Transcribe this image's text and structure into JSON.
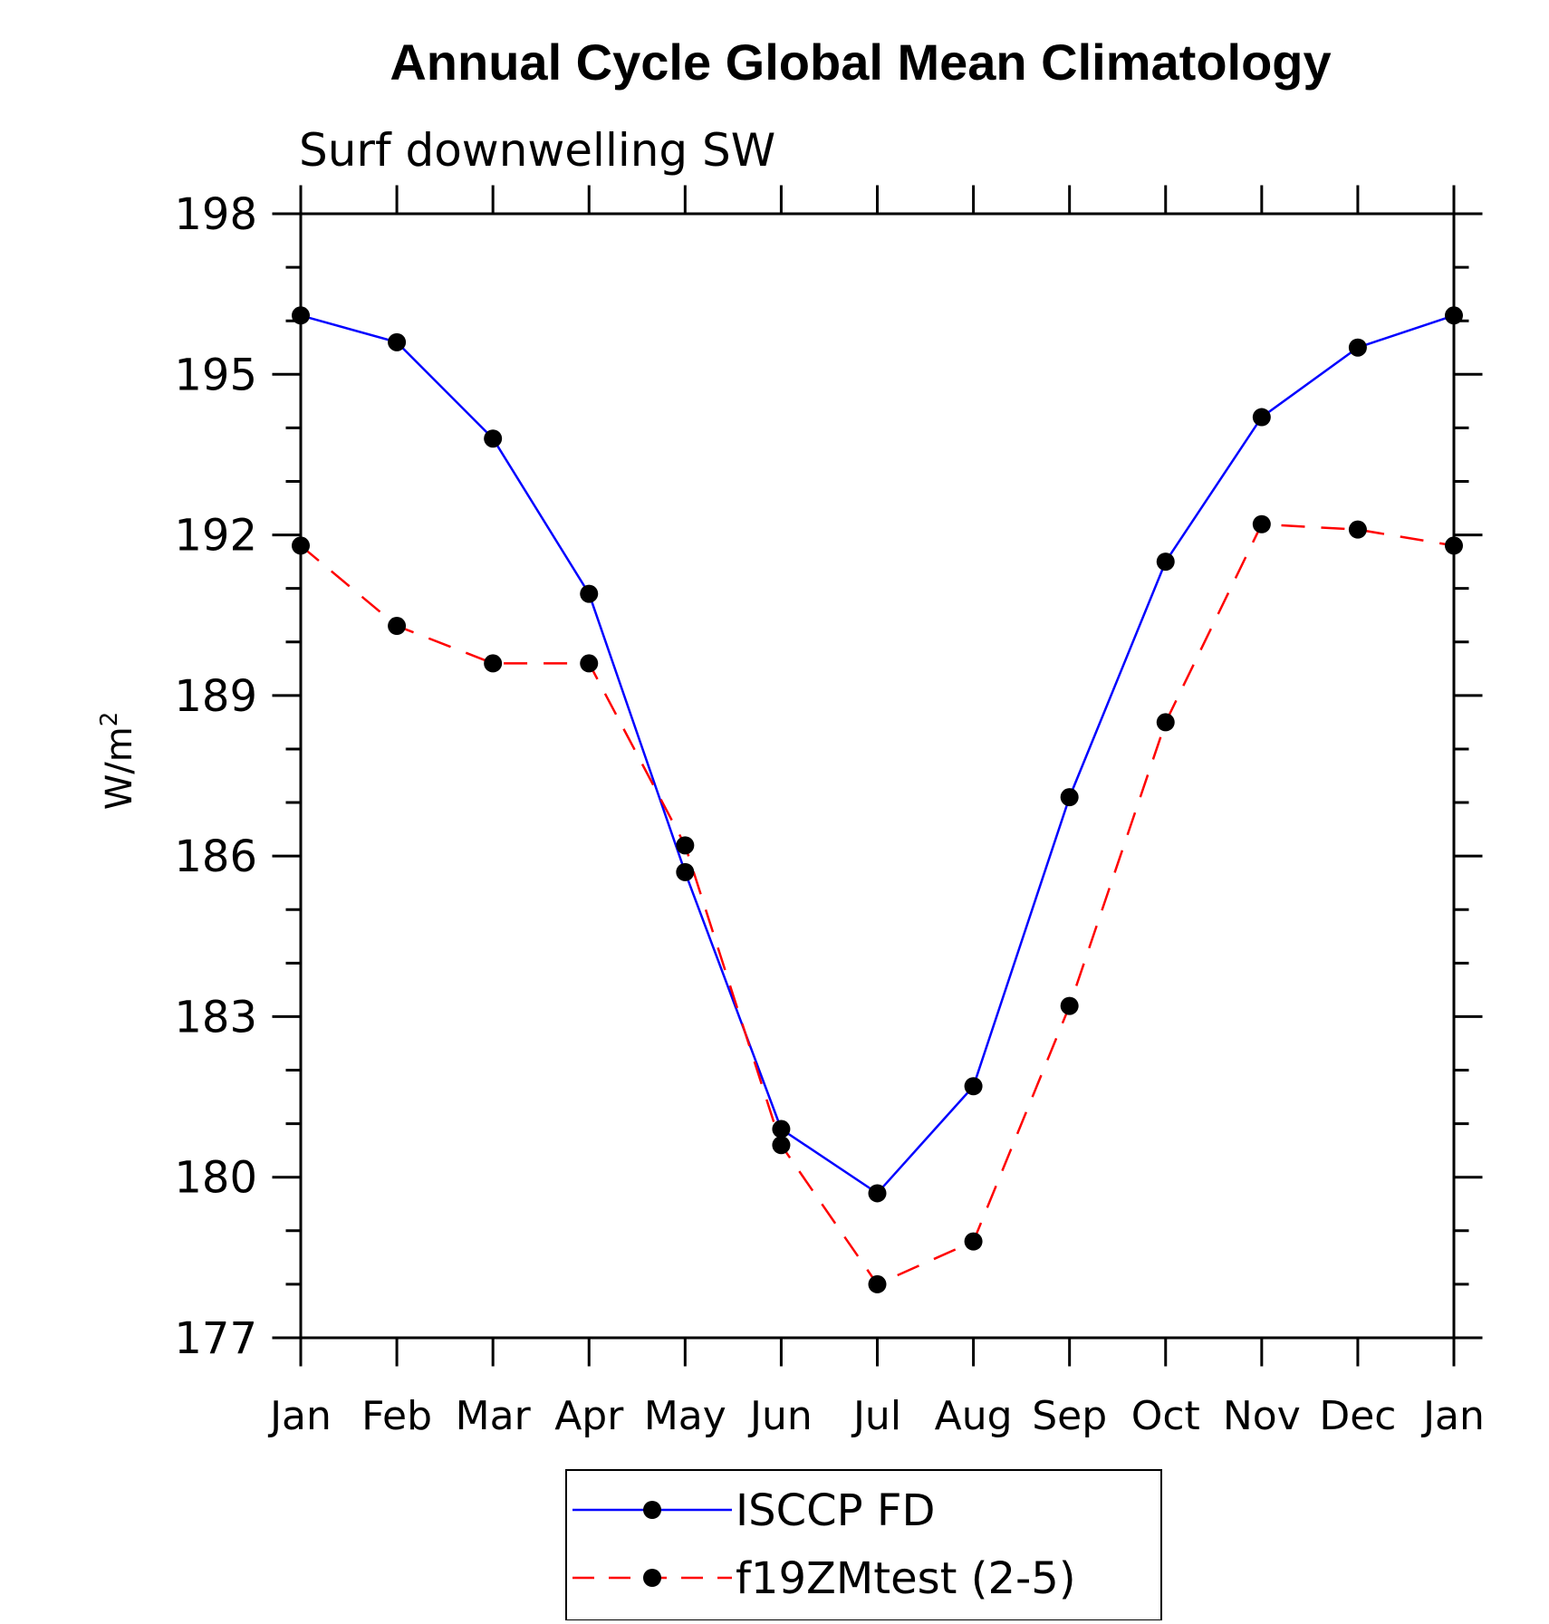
{
  "chart_data": {
    "type": "line",
    "title": "Annual Cycle Global Mean Climatology",
    "subtitle": "Surf downwelling SW",
    "ylabel": "W/m",
    "ylabel_superscript": "2",
    "categories": [
      "Jan",
      "Feb",
      "Mar",
      "Apr",
      "May",
      "Jun",
      "Jul",
      "Aug",
      "Sep",
      "Oct",
      "Nov",
      "Dec",
      "Jan"
    ],
    "ylim": [
      177,
      198
    ],
    "yticks": [
      177,
      180,
      183,
      186,
      189,
      192,
      195,
      198
    ],
    "ytick_labels": [
      "177",
      "180",
      "183",
      "186",
      "189",
      "192",
      "195",
      "198"
    ],
    "grid": false,
    "legend_position": "bottom-center",
    "series": [
      {
        "name": "ISCCP FD",
        "color": "#0000ff",
        "line_style": "solid",
        "marker": "filled-circle",
        "values": [
          196.1,
          195.6,
          193.8,
          190.9,
          185.7,
          180.9,
          179.7,
          181.7,
          187.1,
          191.5,
          194.2,
          195.5,
          196.1
        ]
      },
      {
        "name": "f19ZMtest (2-5)",
        "color": "#ff0000",
        "line_style": "dashed",
        "marker": "filled-circle",
        "values": [
          191.8,
          190.3,
          189.6,
          189.6,
          186.2,
          180.6,
          178.0,
          178.8,
          183.2,
          188.5,
          192.2,
          192.1,
          191.8
        ]
      }
    ]
  }
}
